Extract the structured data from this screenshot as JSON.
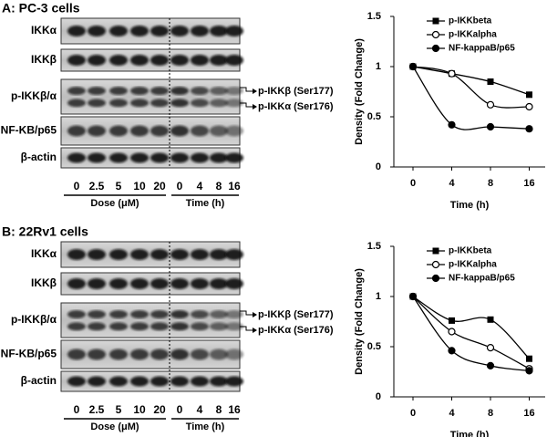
{
  "panels": [
    {
      "title": "A: PC-3 cells",
      "blot_rows": [
        "IKKα",
        "IKKβ",
        "p-IKKβ/α",
        "NF-KB/p65",
        "β-actin"
      ],
      "lanes": [
        "0",
        "2.5",
        "5",
        "10",
        "20",
        "0",
        "4",
        "8",
        "16"
      ],
      "groups": [
        "Dose (μM)",
        "Time (h)"
      ],
      "annotations": [
        "p-IKKβ (Ser177)",
        "p-IKKα (Ser176)"
      ]
    },
    {
      "title": "B: 22Rv1 cells",
      "blot_rows": [
        "IKKα",
        "IKKβ",
        "p-IKKβ/α",
        "NF-KB/p65",
        "β-actin"
      ],
      "lanes": [
        "0",
        "2.5",
        "5",
        "10",
        "20",
        "0",
        "4",
        "8",
        "16"
      ],
      "groups": [
        "Dose (μM)",
        "Time (h)"
      ],
      "annotations": [
        "p-IKKβ (Ser177)",
        "p-IKKα (Ser176)"
      ]
    }
  ],
  "chart_data": [
    {
      "type": "line",
      "x_label": "Time (h)",
      "y_label": "Density (Fold Change)",
      "categories": [
        "0",
        "4",
        "8",
        "16"
      ],
      "ylim": [
        0,
        1.5
      ],
      "yticks": [
        0,
        0.5,
        1,
        1.5
      ],
      "legend": "upper right",
      "series": [
        {
          "name": "p-IKKbeta",
          "color": "#000000",
          "marker": "square",
          "values": [
            1,
            0.93,
            0.85,
            0.72
          ]
        },
        {
          "name": "p-IKKalpha",
          "color": "#000000",
          "marker": "circle-open",
          "values": [
            1,
            0.93,
            0.62,
            0.6
          ]
        },
        {
          "name": "NF-kappaB/p65",
          "color": "#000000",
          "marker": "circle",
          "values": [
            1,
            0.42,
            0.4,
            0.38
          ]
        }
      ]
    },
    {
      "type": "line",
      "x_label": "Time (h)",
      "y_label": "Density (Fold Change)",
      "categories": [
        "0",
        "4",
        "8",
        "16"
      ],
      "ylim": [
        0,
        1.5
      ],
      "yticks": [
        0,
        0.5,
        1,
        1.5
      ],
      "legend": "upper right",
      "series": [
        {
          "name": "p-IKKbeta",
          "color": "#000000",
          "marker": "square",
          "values": [
            1,
            0.76,
            0.77,
            0.38
          ]
        },
        {
          "name": "p-IKKalpha",
          "color": "#000000",
          "marker": "circle-open",
          "values": [
            1,
            0.65,
            0.49,
            0.28
          ]
        },
        {
          "name": "NF-kappaB/p65",
          "color": "#000000",
          "marker": "circle",
          "values": [
            1,
            0.46,
            0.31,
            0.26
          ]
        }
      ]
    }
  ]
}
